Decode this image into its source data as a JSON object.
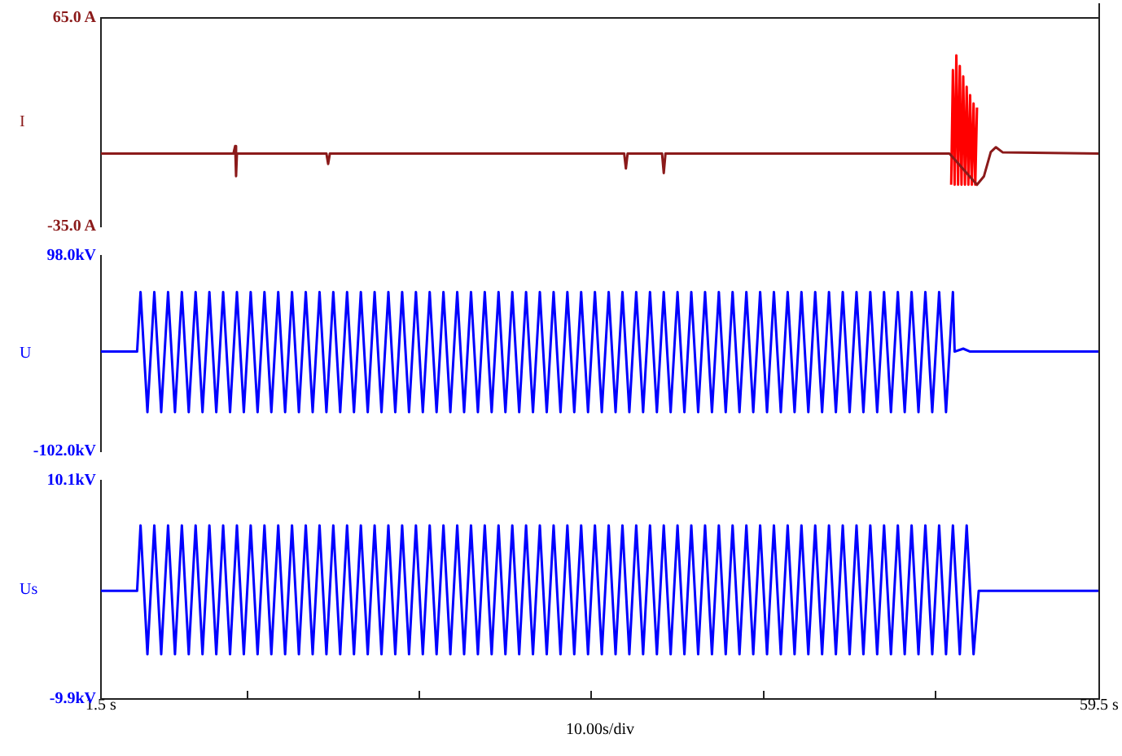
{
  "chart_data": [
    {
      "type": "line",
      "ylabel": "I",
      "xlim": [
        1.5,
        59.5
      ],
      "ylim": [
        -35,
        65
      ],
      "yticks": [
        {
          "value": 65,
          "label": "65.0 A"
        },
        {
          "value": -35,
          "label": "-35.0 A"
        }
      ],
      "tick_labels": "y",
      "grid": false,
      "legend": false,
      "series": [
        {
          "color": "#8b1a1a",
          "x": [
            1.5,
            9.2,
            9.3,
            9.35,
            9.4,
            14.6,
            14.7,
            14.8,
            31.9,
            32.0,
            32.1,
            34.1,
            34.2,
            34.3,
            50.8,
            52.4,
            52.8,
            53.2,
            53.5,
            53.9,
            59.5
          ],
          "values": [
            0,
            0,
            3.6,
            -10.9,
            0,
            0,
            -5,
            0,
            0,
            -7.2,
            0,
            0,
            -9.4,
            0,
            0,
            -15,
            -11,
            0.7,
            3,
            0.5,
            0
          ]
        },
        {
          "color": "#ff0000",
          "x": [
            50.9,
            51.0,
            51.1,
            51.2,
            51.3,
            51.4,
            51.5,
            51.6,
            51.7,
            51.8,
            51.9,
            52.0,
            52.1,
            52.2,
            52.3,
            52.4
          ],
          "values": [
            -15,
            40,
            -15,
            47,
            -15,
            42,
            -15,
            37,
            -15,
            32,
            -15,
            28,
            -15,
            24,
            -15,
            22
          ]
        }
      ]
    },
    {
      "type": "line",
      "ylabel": "U",
      "xlim": [
        1.5,
        59.5
      ],
      "ylim": [
        -102,
        98
      ],
      "yticks": [
        {
          "value": 98,
          "label": "98.0kV"
        },
        {
          "value": -102,
          "label": "-102.0kV"
        }
      ],
      "tick_labels": "y",
      "grid": false,
      "legend": false,
      "series": [
        {
          "color": "#0000ff",
          "x": [
            1.5,
            3.6,
            3.8,
            4.2,
            4.6,
            5.0,
            5.4,
            5.8,
            6.2,
            6.6,
            7.0,
            7.4,
            7.8,
            8.2,
            8.6,
            9.0,
            9.4,
            9.8,
            10.2,
            10.6,
            11.0,
            11.4,
            11.8,
            12.2,
            12.6,
            13.0,
            13.4,
            13.8,
            14.2,
            14.6,
            15.0,
            15.4,
            15.8,
            16.2,
            16.6,
            17.0,
            17.4,
            17.8,
            18.2,
            18.6,
            19.0,
            19.4,
            19.8,
            20.2,
            20.6,
            21.0,
            21.4,
            21.8,
            22.2,
            22.6,
            23.0,
            23.4,
            23.8,
            24.2,
            24.6,
            25.0,
            25.4,
            25.8,
            26.2,
            26.6,
            27.0,
            27.4,
            27.8,
            28.2,
            28.6,
            29.0,
            29.4,
            29.8,
            30.2,
            30.6,
            31.0,
            31.4,
            31.8,
            32.2,
            32.6,
            33.0,
            33.4,
            33.8,
            34.2,
            34.6,
            35.0,
            35.4,
            35.8,
            36.2,
            36.6,
            37.0,
            37.4,
            37.8,
            38.2,
            38.6,
            39.0,
            39.4,
            39.8,
            40.2,
            40.6,
            41.0,
            41.4,
            41.8,
            42.2,
            42.6,
            43.0,
            43.4,
            43.8,
            44.2,
            44.6,
            45.0,
            45.4,
            45.8,
            46.2,
            46.6,
            47.0,
            47.4,
            47.8,
            48.2,
            48.6,
            49.0,
            49.4,
            49.8,
            50.2,
            50.6,
            51.0,
            51.1,
            51.6,
            52.0,
            59.5
          ],
          "values": [
            0,
            0,
            61,
            -62,
            61,
            -62,
            61,
            -62,
            61,
            -62,
            61,
            -62,
            61,
            -62,
            61,
            -62,
            61,
            -62,
            61,
            -62,
            61,
            -62,
            61,
            -62,
            61,
            -62,
            61,
            -62,
            61,
            -62,
            61,
            -62,
            61,
            -62,
            61,
            -62,
            61,
            -62,
            61,
            -62,
            61,
            -62,
            61,
            -62,
            61,
            -62,
            61,
            -62,
            61,
            -62,
            61,
            -62,
            61,
            -62,
            61,
            -62,
            61,
            -62,
            61,
            -62,
            61,
            -62,
            61,
            -62,
            61,
            -62,
            61,
            -62,
            61,
            -62,
            61,
            -62,
            61,
            -62,
            61,
            -62,
            61,
            -62,
            61,
            -62,
            61,
            -62,
            61,
            -62,
            61,
            -62,
            61,
            -62,
            61,
            -62,
            61,
            -62,
            61,
            -62,
            61,
            -62,
            61,
            -62,
            61,
            -62,
            61,
            -62,
            61,
            -62,
            61,
            -62,
            61,
            -62,
            61,
            -62,
            61,
            -62,
            61,
            -62,
            61,
            -62,
            61,
            -62,
            61,
            -62,
            61,
            0,
            3,
            0,
            0
          ]
        }
      ]
    },
    {
      "type": "line",
      "ylabel": "Us",
      "xlabel": "10.00s/div",
      "xlim": [
        1.5,
        59.5
      ],
      "xticks": [
        {
          "value": 1.5,
          "label": "1.5 s"
        },
        {
          "value": 10,
          "label": null
        },
        {
          "value": 20,
          "label": null
        },
        {
          "value": 30,
          "label": null
        },
        {
          "value": 40,
          "label": null
        },
        {
          "value": 50,
          "label": null
        },
        {
          "value": 59.5,
          "label": "59.5 s"
        }
      ],
      "ylim": [
        -9.9,
        10.1
      ],
      "yticks": [
        {
          "value": 10.1,
          "label": "10.1kV"
        },
        {
          "value": -9.9,
          "label": "-9.9kV"
        }
      ],
      "grid": false,
      "legend": false,
      "series": [
        {
          "color": "#0000ff",
          "x": [
            1.5,
            3.6,
            3.8,
            4.2,
            4.6,
            5.0,
            5.4,
            5.8,
            6.2,
            6.6,
            7.0,
            7.4,
            7.8,
            8.2,
            8.6,
            9.0,
            9.4,
            9.8,
            10.2,
            10.6,
            11.0,
            11.4,
            11.8,
            12.2,
            12.6,
            13.0,
            13.4,
            13.8,
            14.2,
            14.6,
            15.0,
            15.4,
            15.8,
            16.2,
            16.6,
            17.0,
            17.4,
            17.8,
            18.2,
            18.6,
            19.0,
            19.4,
            19.8,
            20.2,
            20.6,
            21.0,
            21.4,
            21.8,
            22.2,
            22.6,
            23.0,
            23.4,
            23.8,
            24.2,
            24.6,
            25.0,
            25.4,
            25.8,
            26.2,
            26.6,
            27.0,
            27.4,
            27.8,
            28.2,
            28.6,
            29.0,
            29.4,
            29.8,
            30.2,
            30.6,
            31.0,
            31.4,
            31.8,
            32.2,
            32.6,
            33.0,
            33.4,
            33.8,
            34.2,
            34.6,
            35.0,
            35.4,
            35.8,
            36.2,
            36.6,
            37.0,
            37.4,
            37.8,
            38.2,
            38.6,
            39.0,
            39.4,
            39.8,
            40.2,
            40.6,
            41.0,
            41.4,
            41.8,
            42.2,
            42.6,
            43.0,
            43.4,
            43.8,
            44.2,
            44.6,
            45.0,
            45.4,
            45.8,
            46.2,
            46.6,
            47.0,
            47.4,
            47.8,
            48.2,
            48.6,
            49.0,
            49.4,
            49.8,
            50.2,
            50.6,
            51.0,
            51.4,
            51.8,
            52.2,
            52.5,
            59.5
          ],
          "values": [
            0,
            0,
            6,
            -5.8,
            6,
            -5.8,
            6,
            -5.8,
            6,
            -5.8,
            6,
            -5.8,
            6,
            -5.8,
            6,
            -5.8,
            6,
            -5.8,
            6,
            -5.8,
            6,
            -5.8,
            6,
            -5.8,
            6,
            -5.8,
            6,
            -5.8,
            6,
            -5.8,
            6,
            -5.8,
            6,
            -5.8,
            6,
            -5.8,
            6,
            -5.8,
            6,
            -5.8,
            6,
            -5.8,
            6,
            -5.8,
            6,
            -5.8,
            6,
            -5.8,
            6,
            -5.8,
            6,
            -5.8,
            6,
            -5.8,
            6,
            -5.8,
            6,
            -5.8,
            6,
            -5.8,
            6,
            -5.8,
            6,
            -5.8,
            6,
            -5.8,
            6,
            -5.8,
            6,
            -5.8,
            6,
            -5.8,
            6,
            -5.8,
            6,
            -5.8,
            6,
            -5.8,
            6,
            -5.8,
            6,
            -5.8,
            6,
            -5.8,
            6,
            -5.8,
            6,
            -5.8,
            6,
            -5.8,
            6,
            -5.8,
            6,
            -5.8,
            6,
            -5.8,
            6,
            -5.8,
            6,
            -5.8,
            6,
            -5.8,
            6,
            -5.8,
            6,
            -5.8,
            6,
            -5.8,
            6,
            -5.8,
            6,
            -5.8,
            6,
            -5.8,
            6,
            -5.8,
            6,
            -5.8,
            6,
            -5.8,
            6,
            -5.8,
            6,
            -5.8,
            0,
            0
          ]
        }
      ]
    }
  ]
}
